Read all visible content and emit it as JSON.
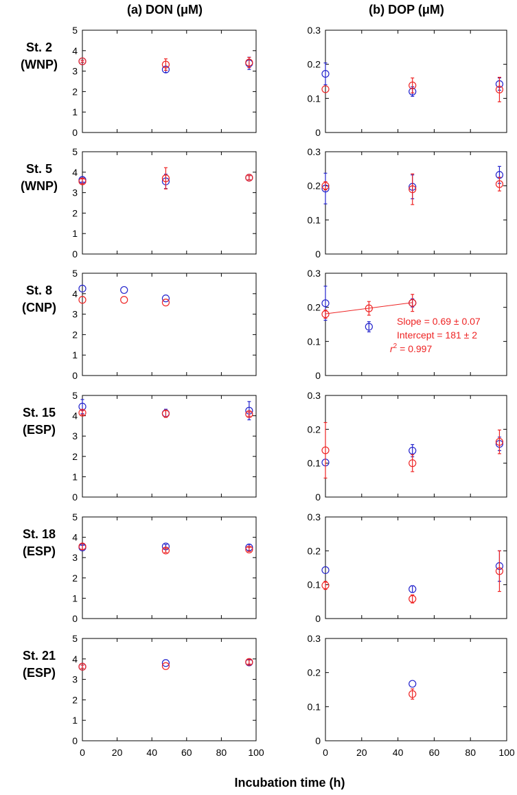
{
  "figure": {
    "col_titles": [
      "(a) DON (μM)",
      "(b) DOP (μM)"
    ],
    "xlabel": "Incubation time (h)"
  },
  "chart_data": [
    {
      "type": "scatter",
      "station": "St. 2",
      "region": "(WNP)",
      "variable": "DON",
      "xlim": [
        0,
        100
      ],
      "ylim": [
        0,
        5
      ],
      "xticks": [
        0,
        20,
        40,
        60,
        80,
        100
      ],
      "yticks": [
        "0",
        "1",
        "2",
        "3",
        "4",
        "5"
      ],
      "series": [
        {
          "color": "#2222cc",
          "points": [
            {
              "x": 0,
              "y": 3.48,
              "err": 0.05
            },
            {
              "x": 48,
              "y": 3.08,
              "err": 0.15
            },
            {
              "x": 96,
              "y": 3.38,
              "err": 0.3
            }
          ]
        },
        {
          "color": "#ee2222",
          "points": [
            {
              "x": 0,
              "y": 3.48,
              "err": 0.05
            },
            {
              "x": 48,
              "y": 3.32,
              "err": 0.28
            },
            {
              "x": 96,
              "y": 3.42,
              "err": 0.25
            }
          ]
        }
      ]
    },
    {
      "type": "scatter",
      "station": "St. 2",
      "region": "(WNP)",
      "variable": "DOP",
      "xlim": [
        0,
        100
      ],
      "ylim": [
        0,
        0.3
      ],
      "xticks": [
        0,
        20,
        40,
        60,
        80,
        100
      ],
      "yticks": [
        "0",
        "0.1",
        "0.2",
        "0.3"
      ],
      "series": [
        {
          "color": "#2222cc",
          "points": [
            {
              "x": 0,
              "y": 0.172,
              "err": 0.032
            },
            {
              "x": 48,
              "y": 0.12,
              "err": 0.014
            },
            {
              "x": 96,
              "y": 0.142,
              "err": 0.018
            }
          ]
        },
        {
          "color": "#ee2222",
          "points": [
            {
              "x": 0,
              "y": 0.127,
              "err": 0
            },
            {
              "x": 48,
              "y": 0.138,
              "err": 0.022
            },
            {
              "x": 96,
              "y": 0.126,
              "err": 0.036
            }
          ]
        }
      ]
    },
    {
      "type": "scatter",
      "station": "St. 5",
      "region": "(WNP)",
      "variable": "DON",
      "xlim": [
        0,
        100
      ],
      "ylim": [
        0,
        5
      ],
      "xticks": [
        0,
        20,
        40,
        60,
        80,
        100
      ],
      "yticks": [
        "0",
        "1",
        "2",
        "3",
        "4",
        "5"
      ],
      "series": [
        {
          "color": "#2222cc",
          "points": [
            {
              "x": 0,
              "y": 3.62,
              "err": 0.1
            },
            {
              "x": 48,
              "y": 3.55,
              "err": 0.35
            },
            {
              "x": 96,
              "y": 3.73,
              "err": 0.1
            }
          ]
        },
        {
          "color": "#ee2222",
          "points": [
            {
              "x": 0,
              "y": 3.55,
              "err": 0.12
            },
            {
              "x": 48,
              "y": 3.7,
              "err": 0.52
            },
            {
              "x": 96,
              "y": 3.73,
              "err": 0.1
            }
          ]
        }
      ]
    },
    {
      "type": "scatter",
      "station": "St. 5",
      "region": "(WNP)",
      "variable": "DOP",
      "xlim": [
        0,
        100
      ],
      "ylim": [
        0,
        0.3
      ],
      "xticks": [
        0,
        20,
        40,
        60,
        80,
        100
      ],
      "yticks": [
        "0",
        "0.1",
        "0.2",
        "0.3"
      ],
      "series": [
        {
          "color": "#2222cc",
          "points": [
            {
              "x": 0,
              "y": 0.192,
              "err": 0.045
            },
            {
              "x": 48,
              "y": 0.197,
              "err": 0.035
            },
            {
              "x": 96,
              "y": 0.232,
              "err": 0.025
            }
          ]
        },
        {
          "color": "#ee2222",
          "points": [
            {
              "x": 0,
              "y": 0.2,
              "err": 0.012
            },
            {
              "x": 48,
              "y": 0.19,
              "err": 0.045
            },
            {
              "x": 96,
              "y": 0.205,
              "err": 0.02
            }
          ]
        }
      ]
    },
    {
      "type": "scatter",
      "station": "St. 8",
      "region": "(CNP)",
      "variable": "DON",
      "xlim": [
        0,
        100
      ],
      "ylim": [
        0,
        5
      ],
      "xticks": [
        0,
        20,
        40,
        60,
        80,
        100
      ],
      "yticks": [
        "0",
        "1",
        "2",
        "3",
        "4",
        "5"
      ],
      "series": [
        {
          "color": "#2222cc",
          "points": [
            {
              "x": 0,
              "y": 4.25,
              "err": 0
            },
            {
              "x": 24,
              "y": 4.18,
              "err": 0
            },
            {
              "x": 48,
              "y": 3.77,
              "err": 0
            }
          ]
        },
        {
          "color": "#ee2222",
          "points": [
            {
              "x": 0,
              "y": 3.7,
              "err": 0
            },
            {
              "x": 24,
              "y": 3.7,
              "err": 0
            },
            {
              "x": 48,
              "y": 3.57,
              "err": 0
            }
          ]
        }
      ]
    },
    {
      "type": "scatter",
      "station": "St. 8",
      "region": "(CNP)",
      "variable": "DOP",
      "xlim": [
        0,
        100
      ],
      "ylim": [
        0,
        0.3
      ],
      "xticks": [
        0,
        20,
        40,
        60,
        80,
        100
      ],
      "yticks": [
        "0",
        "0.1",
        "0.2",
        "0.3"
      ],
      "series": [
        {
          "color": "#2222cc",
          "points": [
            {
              "x": 0,
              "y": 0.212,
              "err": 0.05
            },
            {
              "x": 24,
              "y": 0.143,
              "err": 0.015
            },
            {
              "x": 48,
              "y": 0.213,
              "err": 0.012
            }
          ]
        },
        {
          "color": "#ee2222",
          "points": [
            {
              "x": 0,
              "y": 0.18,
              "err": 0.012
            },
            {
              "x": 24,
              "y": 0.197,
              "err": 0.02
            },
            {
              "x": 48,
              "y": 0.213,
              "err": 0.025
            }
          ]
        }
      ],
      "fit_line": {
        "color": "#ee2222",
        "x": [
          0,
          48
        ],
        "y": [
          0.181,
          0.214
        ]
      },
      "annotation": {
        "slope": "Slope = 0.69 ± 0.07",
        "intercept": "Intercept = 181 ± 2",
        "r2_symbol": "r",
        "r2_exp": "2",
        "r2_value": " = 0.997"
      }
    },
    {
      "type": "scatter",
      "station": "St. 15",
      "region": "(ESP)",
      "variable": "DON",
      "xlim": [
        0,
        100
      ],
      "ylim": [
        0,
        5
      ],
      "xticks": [
        0,
        20,
        40,
        60,
        80,
        100
      ],
      "yticks": [
        "0",
        "1",
        "2",
        "3",
        "4",
        "5"
      ],
      "series": [
        {
          "color": "#2222cc",
          "points": [
            {
              "x": 0,
              "y": 4.45,
              "err": 0.35
            },
            {
              "x": 48,
              "y": 4.12,
              "err": 0.2
            },
            {
              "x": 96,
              "y": 4.25,
              "err": 0.45
            }
          ]
        },
        {
          "color": "#ee2222",
          "points": [
            {
              "x": 0,
              "y": 4.15,
              "err": 0.1
            },
            {
              "x": 48,
              "y": 4.1,
              "err": 0.18
            },
            {
              "x": 96,
              "y": 4.08,
              "err": 0.1
            }
          ]
        }
      ]
    },
    {
      "type": "scatter",
      "station": "St. 15",
      "region": "(ESP)",
      "variable": "DOP",
      "xlim": [
        0,
        100
      ],
      "ylim": [
        0,
        0.3
      ],
      "xticks": [
        0,
        20,
        40,
        60,
        80,
        100
      ],
      "yticks": [
        "0",
        "0.1",
        "0.2",
        "0.3"
      ],
      "series": [
        {
          "color": "#2222cc",
          "points": [
            {
              "x": 0,
              "y": 0.102,
              "err": 0
            },
            {
              "x": 48,
              "y": 0.137,
              "err": 0.018
            },
            {
              "x": 96,
              "y": 0.157,
              "err": 0.02
            }
          ]
        },
        {
          "color": "#ee2222",
          "points": [
            {
              "x": 0,
              "y": 0.138,
              "err": 0.082
            },
            {
              "x": 48,
              "y": 0.1,
              "err": 0.025
            },
            {
              "x": 96,
              "y": 0.163,
              "err": 0.035
            }
          ]
        }
      ]
    },
    {
      "type": "scatter",
      "station": "St. 18",
      "region": "(ESP)",
      "variable": "DON",
      "xlim": [
        0,
        100
      ],
      "ylim": [
        0,
        5
      ],
      "xticks": [
        0,
        20,
        40,
        60,
        80,
        100
      ],
      "yticks": [
        "0",
        "1",
        "2",
        "3",
        "4",
        "5"
      ],
      "series": [
        {
          "color": "#2222cc",
          "points": [
            {
              "x": 0,
              "y": 3.5,
              "err": 0.1
            },
            {
              "x": 48,
              "y": 3.55,
              "err": 0.1
            },
            {
              "x": 96,
              "y": 3.5,
              "err": 0.15
            }
          ]
        },
        {
          "color": "#ee2222",
          "points": [
            {
              "x": 0,
              "y": 3.55,
              "err": 0.15
            },
            {
              "x": 48,
              "y": 3.35,
              "err": 0.1
            },
            {
              "x": 96,
              "y": 3.4,
              "err": 0.1
            }
          ]
        }
      ]
    },
    {
      "type": "scatter",
      "station": "St. 18",
      "region": "(ESP)",
      "variable": "DOP",
      "xlim": [
        0,
        100
      ],
      "ylim": [
        0,
        0.3
      ],
      "xticks": [
        0,
        20,
        40,
        60,
        80,
        100
      ],
      "yticks": [
        "0",
        "0.1",
        "0.2",
        "0.3"
      ],
      "series": [
        {
          "color": "#2222cc",
          "points": [
            {
              "x": 0,
              "y": 0.143,
              "err": 0
            },
            {
              "x": 48,
              "y": 0.087,
              "err": 0.01
            },
            {
              "x": 96,
              "y": 0.155,
              "err": 0.045
            }
          ]
        },
        {
          "color": "#ee2222",
          "points": [
            {
              "x": 0,
              "y": 0.098,
              "err": 0.012
            },
            {
              "x": 48,
              "y": 0.058,
              "err": 0.012
            },
            {
              "x": 96,
              "y": 0.14,
              "err": 0.06
            }
          ]
        }
      ]
    },
    {
      "type": "scatter",
      "station": "St. 21",
      "region": "(ESP)",
      "variable": "DON",
      "xlim": [
        0,
        100
      ],
      "ylim": [
        0,
        5
      ],
      "xticks": [
        0,
        20,
        40,
        60,
        80,
        100
      ],
      "yticks": [
        "0",
        "1",
        "2",
        "3",
        "4",
        "5"
      ],
      "series": [
        {
          "color": "#2222cc",
          "points": [
            {
              "x": 0,
              "y": 3.62,
              "err": 0.08
            },
            {
              "x": 48,
              "y": 3.8,
              "err": 0
            },
            {
              "x": 96,
              "y": 3.83,
              "err": 0.12
            }
          ]
        },
        {
          "color": "#ee2222",
          "points": [
            {
              "x": 0,
              "y": 3.62,
              "err": 0.08
            },
            {
              "x": 48,
              "y": 3.65,
              "err": 0
            },
            {
              "x": 96,
              "y": 3.85,
              "err": 0.1
            }
          ]
        }
      ]
    },
    {
      "type": "scatter",
      "station": "St. 21",
      "region": "(ESP)",
      "variable": "DOP",
      "xlim": [
        0,
        100
      ],
      "ylim": [
        0,
        0.3
      ],
      "xticks": [
        0,
        20,
        40,
        60,
        80,
        100
      ],
      "yticks": [
        "0",
        "0.1",
        "0.2",
        "0.3"
      ],
      "series": [
        {
          "color": "#2222cc",
          "points": [
            {
              "x": 48,
              "y": 0.167,
              "err": 0
            }
          ]
        },
        {
          "color": "#ee2222",
          "points": [
            {
              "x": 48,
              "y": 0.137,
              "err": 0.015
            }
          ]
        }
      ]
    }
  ]
}
